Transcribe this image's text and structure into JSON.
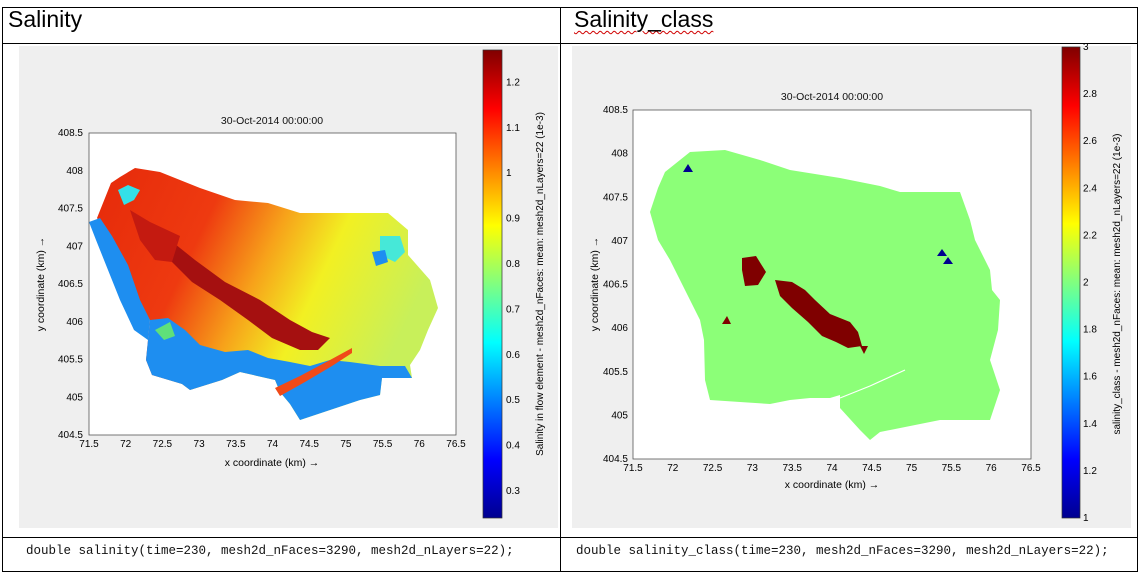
{
  "panels": [
    {
      "header": "Salinity",
      "code": "double salinity(time=230, mesh2d_nFaces=3290, mesh2d_nLayers=22);",
      "chart_data": {
        "type": "heatmap",
        "title": "30-Oct-2014 00:00:00",
        "xlabel": "x coordinate (km) →",
        "ylabel": "y coordinate (km) →",
        "xlim": [
          71.5,
          76.5
        ],
        "ylim": [
          404.5,
          408.5
        ],
        "x_ticks": [
          "71.5",
          "72",
          "72.5",
          "73",
          "73.5",
          "74",
          "74.5",
          "75",
          "75.5",
          "76",
          "76.5"
        ],
        "y_ticks": [
          "404.5",
          "405",
          "405.5",
          "406",
          "406.5",
          "407",
          "407.5",
          "408",
          "408.5"
        ],
        "colorbar": {
          "label": "Salinity in flow element - mesh2d_nFaces: mean: mesh2d_nLayers=22 (1e-3)",
          "range": [
            0.22,
            1.25
          ],
          "ticks": [
            "0.3",
            "0.4",
            "0.5",
            "0.6",
            "0.7",
            "0.8",
            "0.9",
            "1",
            "1.1",
            "1.2"
          ],
          "colormap": "jet"
        }
      }
    },
    {
      "header": "Salinity_class",
      "code": "double salinity_class(time=230, mesh2d_nFaces=3290, mesh2d_nLayers=22);",
      "chart_data": {
        "type": "heatmap",
        "title": "30-Oct-2014 00:00:00",
        "xlabel": "x coordinate (km) →",
        "ylabel": "y coordinate (km) →",
        "xlim": [
          71.5,
          76.5
        ],
        "ylim": [
          404.5,
          408.5
        ],
        "x_ticks": [
          "71.5",
          "72",
          "72.5",
          "73",
          "73.5",
          "74",
          "74.5",
          "75",
          "75.5",
          "76",
          "76.5"
        ],
        "y_ticks": [
          "404.5",
          "405",
          "405.5",
          "406",
          "406.5",
          "407",
          "407.5",
          "408",
          "408.5"
        ],
        "colorbar": {
          "label": "salinity_class - mesh2d_nFaces: mean: mesh2d_nLayers=22 (1e-3)",
          "range": [
            1,
            3
          ],
          "ticks": [
            "1",
            "1.2",
            "1.4",
            "1.6",
            "1.8",
            "2",
            "2.2",
            "2.4",
            "2.6",
            "2.8",
            "3"
          ],
          "colormap": "jet"
        }
      }
    }
  ]
}
